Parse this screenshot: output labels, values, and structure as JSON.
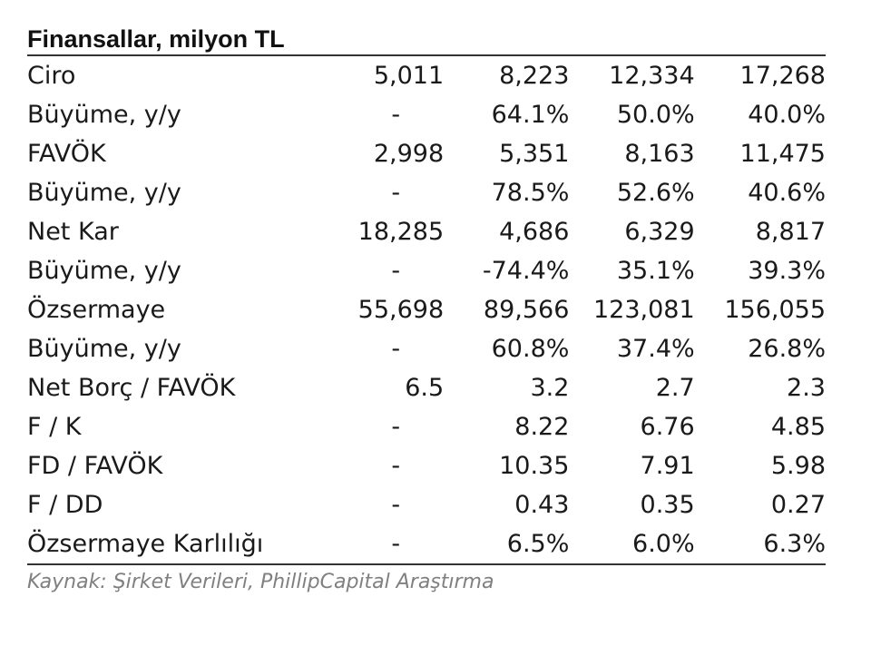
{
  "title": "Finansallar, milyon TL",
  "rows": [
    {
      "label": "Ciro",
      "values": [
        "5,011",
        "8,223",
        "12,334",
        "17,268"
      ]
    },
    {
      "label": "Büyüme, y/y",
      "values": [
        "-",
        "64.1%",
        "50.0%",
        "40.0%"
      ]
    },
    {
      "label": "FAVÖK",
      "values": [
        "2,998",
        "5,351",
        "8,163",
        "11,475"
      ]
    },
    {
      "label": "Büyüme, y/y",
      "values": [
        "-",
        "78.5%",
        "52.6%",
        "40.6%"
      ]
    },
    {
      "label": "Net Kar",
      "values": [
        "18,285",
        "4,686",
        "6,329",
        "8,817"
      ]
    },
    {
      "label": "Büyüme, y/y",
      "values": [
        "-",
        "-74.4%",
        "35.1%",
        "39.3%"
      ]
    },
    {
      "label": "Özsermaye",
      "values": [
        "55,698",
        "89,566",
        "123,081",
        "156,055"
      ]
    },
    {
      "label": "Büyüme, y/y",
      "values": [
        "-",
        "60.8%",
        "37.4%",
        "26.8%"
      ]
    },
    {
      "label": "Net Borç  / FAVÖK",
      "values": [
        "6.5",
        "3.2",
        "2.7",
        "2.3"
      ]
    },
    {
      "label": "F / K",
      "values": [
        "-",
        "8.22",
        "6.76",
        "4.85"
      ]
    },
    {
      "label": "FD / FAVÖK",
      "values": [
        "-",
        "10.35",
        "7.91",
        "5.98"
      ]
    },
    {
      "label": "F / DD",
      "values": [
        "-",
        "0.43",
        "0.35",
        "0.27"
      ]
    },
    {
      "label": "Özsermaye Karlılığı",
      "values": [
        "-",
        "6.5%",
        "6.0%",
        "6.3%"
      ]
    }
  ],
  "source": "Kaynak: Şirket Verileri, PhillipCapital Araştırma"
}
